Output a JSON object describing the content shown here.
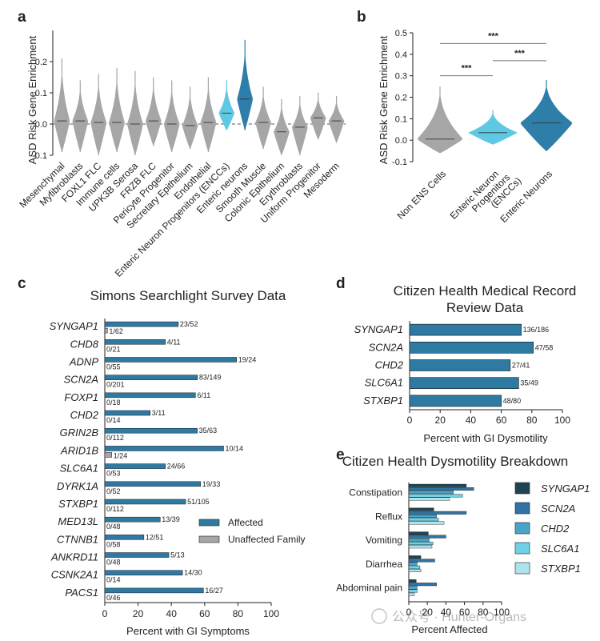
{
  "watermark": "公众号 · Hunter-Organs",
  "colors": {
    "gray": "#a6a6a6",
    "light_teal": "#5fc8e2",
    "dark_teal": "#2d7ea8",
    "affected": "#2f7aa3",
    "syngap1": "#1e4454",
    "scn2a": "#2f74a4",
    "chd2": "#47a5c8",
    "slc6a1": "#6fd0e6",
    "stxbp1": "#ade3ef"
  },
  "chart_data": [
    {
      "id": "a",
      "panel_label": "a",
      "type": "violin",
      "ylabel": "ASD Risk Gene Enrichment",
      "ylim": [
        -0.1,
        0.3
      ],
      "yticks": [
        "-0.1",
        "0.0",
        "0.1",
        "0.2"
      ],
      "ytick_values": [
        -0.1,
        0.0,
        0.1,
        0.2
      ],
      "reference_line": 0.0,
      "categories": [
        "Mesenchymal",
        "Myfibroblasts",
        "FOXL1 FLC",
        "Immune cells",
        "UPK3B Serosa",
        "FRZB FLC",
        "Pericyte Progenitor",
        "Secretary Epithelium",
        "Endothelial",
        "Enteric Neuron Progenitors (ENCCs)",
        "Enteric neurons",
        "Smooth Muscle",
        "Colonic Epithelium",
        "Erythroblasts",
        "Uniform Progenitor",
        "Mesoderm"
      ],
      "medians": [
        0.01,
        0.01,
        0.005,
        0.005,
        0.0,
        0.01,
        0.0,
        -0.005,
        0.005,
        0.035,
        0.08,
        0.005,
        -0.025,
        -0.01,
        0.02,
        0.01
      ],
      "min": [
        -0.09,
        -0.09,
        -0.1,
        -0.09,
        -0.1,
        -0.07,
        -0.09,
        -0.08,
        -0.09,
        -0.02,
        -0.02,
        -0.08,
        -0.1,
        -0.1,
        -0.05,
        -0.06
      ],
      "max": [
        0.21,
        0.14,
        0.16,
        0.18,
        0.17,
        0.15,
        0.14,
        0.12,
        0.15,
        0.14,
        0.27,
        0.12,
        0.08,
        0.09,
        0.1,
        0.09
      ],
      "colors": [
        "gray",
        "gray",
        "gray",
        "gray",
        "gray",
        "gray",
        "gray",
        "gray",
        "gray",
        "light_teal",
        "dark_teal",
        "gray",
        "gray",
        "gray",
        "gray",
        "gray"
      ]
    },
    {
      "id": "b",
      "panel_label": "b",
      "type": "violin",
      "ylabel": "ASD Risk Gene Enrichment",
      "ylim": [
        -0.1,
        0.5
      ],
      "yticks": [
        "-0.1",
        "0.0",
        "0.1",
        "0.2",
        "0.3",
        "0.4",
        "0.5"
      ],
      "ytick_values": [
        -0.1,
        0.0,
        0.1,
        0.2,
        0.3,
        0.4,
        0.5
      ],
      "categories": [
        "Non ENS Cells",
        "Enteric Neuron Progenitors (ENCCs)",
        "Enteric Neurons"
      ],
      "category_lines": [
        [
          "Non ENS Cells"
        ],
        [
          "Enteric Neuron",
          "Progenitors",
          "(ENCCs)"
        ],
        [
          "Enteric Neurons"
        ]
      ],
      "medians": [
        0.005,
        0.035,
        0.08
      ],
      "min": [
        -0.06,
        -0.02,
        -0.05
      ],
      "max": [
        0.25,
        0.14,
        0.28
      ],
      "colors": [
        "gray",
        "light_teal",
        "dark_teal"
      ],
      "significance": [
        {
          "from": 0,
          "to": 2,
          "y": 0.45,
          "label": "***"
        },
        {
          "from": 0,
          "to": 1,
          "y": 0.3,
          "label": "***"
        },
        {
          "from": 1,
          "to": 2,
          "y": 0.37,
          "label": "***"
        }
      ]
    },
    {
      "id": "c",
      "panel_label": "c",
      "type": "bar",
      "orientation": "horizontal",
      "title": "Simons Searchlight Survey Data",
      "xlabel": "Percent with GI Symptoms",
      "xlim": [
        0,
        100
      ],
      "xticks": [
        "0",
        "20",
        "40",
        "60",
        "80",
        "100"
      ],
      "categories": [
        "SYNGAP1",
        "CHD8",
        "ADNP",
        "SCN2A",
        "FOXP1",
        "CHD2",
        "GRIN2B",
        "ARID1B",
        "SLC6A1",
        "DYRK1A",
        "STXBP1",
        "MED13L",
        "CTNNB1",
        "ANKRD11",
        "CSNK2A1",
        "PACS1"
      ],
      "series": [
        {
          "name": "Affected",
          "color": "affected",
          "values": [
            44.2,
            36.4,
            79.2,
            55.7,
            54.5,
            27.3,
            55.6,
            71.4,
            36.4,
            57.6,
            48.6,
            33.3,
            23.5,
            38.5,
            46.7,
            59.3
          ],
          "labels": [
            "23/52",
            "4/11",
            "19/24",
            "83/149",
            "6/11",
            "3/11",
            "35/63",
            "10/14",
            "24/66",
            "19/33",
            "51/105",
            "13/39",
            "12/51",
            "5/13",
            "14/30",
            "16/27"
          ]
        },
        {
          "name": "Unaffected Family",
          "color": "gray",
          "values": [
            1.6,
            0,
            0,
            0,
            0,
            0,
            0,
            4.2,
            0,
            0,
            0,
            0,
            0,
            0,
            0,
            0
          ],
          "labels": [
            "1/62",
            "0/21",
            "0/55",
            "0/201",
            "0/18",
            "0/14",
            "0/112",
            "1/24",
            "0/53",
            "0/52",
            "0/112",
            "0/48",
            "0/58",
            "0/48",
            "0/14",
            "0/46"
          ]
        }
      ],
      "legend": [
        "Affected",
        "Unaffected Family"
      ]
    },
    {
      "id": "d",
      "panel_label": "d",
      "type": "bar",
      "orientation": "horizontal",
      "title_lines": [
        "Citizen Health Medical Record",
        "Review Data"
      ],
      "xlabel": "Percent with GI Dysmotility",
      "xlim": [
        0,
        100
      ],
      "xticks": [
        "0",
        "20",
        "40",
        "60",
        "80",
        "100"
      ],
      "categories": [
        "SYNGAP1",
        "SCN2A",
        "CHD2",
        "SLC6A1",
        "STXBP1"
      ],
      "values": [
        73.1,
        81.0,
        65.9,
        71.4,
        60.0
      ],
      "labels": [
        "136/186",
        "47/58",
        "27/41",
        "35/49",
        "48/80"
      ],
      "color": "affected"
    },
    {
      "id": "e",
      "panel_label": "e",
      "type": "bar",
      "orientation": "horizontal",
      "title": "Citizen Health Dysmotility Breakdown",
      "xlabel": "Percent Affected",
      "xlim": [
        0,
        100
      ],
      "xticks": [
        "0",
        "20",
        "40",
        "60",
        "80",
        "100"
      ],
      "categories": [
        "Constipation",
        "Reflux",
        "Vomiting",
        "Diarrhea",
        "Abdominal pain"
      ],
      "series": [
        {
          "name": "SYNGAP1",
          "color": "syngap1",
          "values": [
            62,
            27,
            21,
            13,
            8
          ]
        },
        {
          "name": "SCN2A",
          "color": "scn2a",
          "values": [
            70,
            62,
            40,
            28,
            30
          ]
        },
        {
          "name": "CHD2",
          "color": "chd2",
          "values": [
            48,
            30,
            22,
            9,
            9
          ]
        },
        {
          "name": "SLC6A1",
          "color": "slc6a1",
          "values": [
            58,
            32,
            26,
            12,
            9
          ]
        },
        {
          "name": "STXBP1",
          "color": "stxbp1",
          "values": [
            44,
            38,
            25,
            13,
            6
          ]
        }
      ],
      "legend": [
        "SYNGAP1",
        "SCN2A",
        "CHD2",
        "SLC6A1",
        "STXBP1"
      ]
    }
  ]
}
